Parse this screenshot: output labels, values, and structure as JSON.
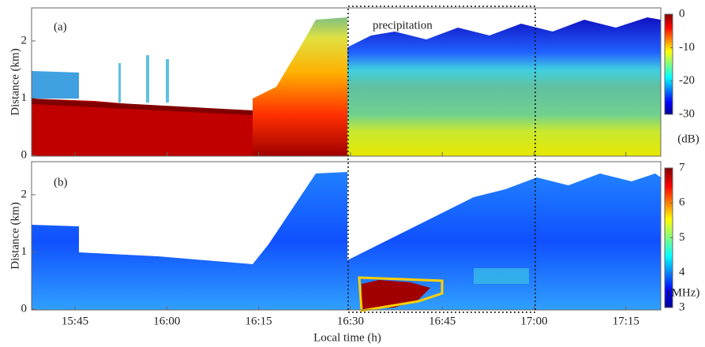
{
  "chart_data": [
    {
      "type": "heatmap",
      "panel_label": "(a)",
      "annotation": "precipitation",
      "ylabel": "Distance (km)",
      "ylim": [
        0,
        2.55
      ],
      "yticks": [
        0,
        1,
        2
      ],
      "colorbar": {
        "clim": [
          -30,
          0
        ],
        "ticks": [
          0,
          -10,
          -20,
          -30
        ],
        "label": "(dB)",
        "colormap": "jet"
      }
    },
    {
      "type": "heatmap",
      "panel_label": "(b)",
      "ylabel": "Distance (km)",
      "xlabel": "Local time (h)",
      "xticks": [
        "15:45",
        "16:00",
        "16:15",
        "16:30",
        "16:45",
        "17:00",
        "17:15"
      ],
      "ylim": [
        0,
        2.55
      ],
      "yticks": [
        0,
        1,
        2
      ],
      "colorbar": {
        "clim": [
          3,
          7
        ],
        "ticks": [
          3,
          4,
          5,
          6,
          7
        ],
        "label": "(MHz)",
        "colormap": "jet"
      }
    }
  ]
}
